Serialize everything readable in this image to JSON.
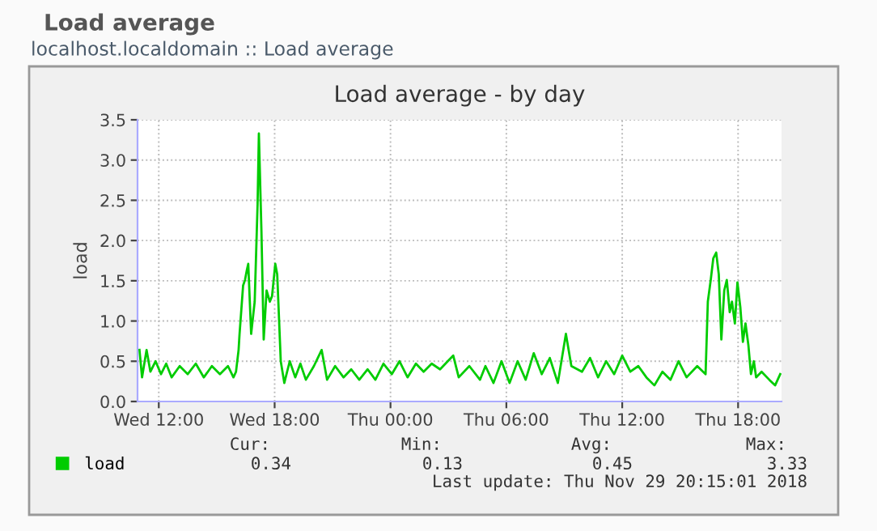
{
  "chart_data": {
    "type": "line",
    "title": "Load average - by day",
    "subtitle": "localhost.localdomain :: Load average",
    "ylabel": "load",
    "annotations": [
      "Load average",
      "Cur:",
      "Min:",
      "Avg:",
      "Max:",
      "0.34",
      "0.13",
      "0.45",
      "3.33",
      "Last update: Thu Nov 29 20:15:01 2018"
    ],
    "xlim": [
      "2018-11-28T10:54",
      "2018-11-29T20:15"
    ],
    "ylim": [
      0,
      3.5
    ],
    "xticks": [
      {
        "value": "2018-11-28T12:00",
        "label": "Wed 12:00"
      },
      {
        "value": "2018-11-28T18:00",
        "label": "Wed 18:00"
      },
      {
        "value": "2018-11-29T00:00",
        "label": "Thu 00:00"
      },
      {
        "value": "2018-11-29T06:00",
        "label": "Thu 06:00"
      },
      {
        "value": "2018-11-29T12:00",
        "label": "Thu 12:00"
      },
      {
        "value": "2018-11-29T18:00",
        "label": "Thu 18:00"
      }
    ],
    "yticks": [
      {
        "value": 0,
        "label": "0.0"
      },
      {
        "value": 0.5,
        "label": "0.5"
      },
      {
        "value": 1,
        "label": "1.0"
      },
      {
        "value": 1.5,
        "label": "1.5"
      },
      {
        "value": 2,
        "label": "2.0"
      },
      {
        "value": 2.5,
        "label": "2.5"
      },
      {
        "value": 3,
        "label": "3.0"
      },
      {
        "value": 3.5,
        "label": "3.5"
      }
    ],
    "grid": true,
    "legend": "bottom left",
    "series": [
      {
        "name": "load",
        "color": "#00cc00",
        "x": [
          "2018-11-28T11:00",
          "2018-11-28T11:08",
          "2018-11-28T11:22",
          "2018-11-28T11:34",
          "2018-11-28T11:50",
          "2018-11-28T12:07",
          "2018-11-28T12:23",
          "2018-11-28T12:40",
          "2018-11-28T13:05",
          "2018-11-28T13:30",
          "2018-11-28T13:55",
          "2018-11-28T14:20",
          "2018-11-28T14:45",
          "2018-11-28T15:10",
          "2018-11-28T15:35",
          "2018-11-28T15:52",
          "2018-11-28T16:00",
          "2018-11-28T16:08",
          "2018-11-28T16:11",
          "2018-11-28T16:22",
          "2018-11-28T16:28",
          "2018-11-28T16:34",
          "2018-11-28T16:38",
          "2018-11-28T16:47",
          "2018-11-28T16:58",
          "2018-11-28T17:07",
          "2018-11-28T17:11",
          "2018-11-28T17:19",
          "2018-11-28T17:26",
          "2018-11-28T17:35",
          "2018-11-28T17:45",
          "2018-11-28T17:52",
          "2018-11-28T18:02",
          "2018-11-28T18:08",
          "2018-11-28T18:19",
          "2018-11-28T18:30",
          "2018-11-28T18:47",
          "2018-11-28T19:04",
          "2018-11-28T19:20",
          "2018-11-28T19:37",
          "2018-11-28T20:02",
          "2018-11-28T20:26",
          "2018-11-28T20:43",
          "2018-11-28T21:08",
          "2018-11-28T21:34",
          "2018-11-28T21:58",
          "2018-11-28T22:23",
          "2018-11-28T22:49",
          "2018-11-28T23:13",
          "2018-11-28T23:38",
          "2018-11-29T00:04",
          "2018-11-29T00:28",
          "2018-11-29T00:53",
          "2018-11-29T01:19",
          "2018-11-29T01:43",
          "2018-11-29T02:08",
          "2018-11-29T02:34",
          "2018-11-29T02:58",
          "2018-11-29T03:15",
          "2018-11-29T03:32",
          "2018-11-29T04:05",
          "2018-11-29T04:38",
          "2018-11-29T04:55",
          "2018-11-29T05:20",
          "2018-11-29T05:45",
          "2018-11-29T06:10",
          "2018-11-29T06:35",
          "2018-11-29T07:00",
          "2018-11-29T07:25",
          "2018-11-29T07:50",
          "2018-11-29T08:15",
          "2018-11-29T08:40",
          "2018-11-29T09:05",
          "2018-11-29T09:22",
          "2018-11-29T09:55",
          "2018-11-29T10:20",
          "2018-11-29T10:45",
          "2018-11-29T11:10",
          "2018-11-29T11:35",
          "2018-11-29T12:00",
          "2018-11-29T12:25",
          "2018-11-29T12:50",
          "2018-11-29T13:15",
          "2018-11-29T13:40",
          "2018-11-29T14:05",
          "2018-11-29T14:30",
          "2018-11-29T14:55",
          "2018-11-29T15:20",
          "2018-11-29T15:53",
          "2018-11-29T16:19",
          "2018-11-29T16:26",
          "2018-11-29T16:35",
          "2018-11-29T16:43",
          "2018-11-29T16:52",
          "2018-11-29T17:00",
          "2018-11-29T17:08",
          "2018-11-29T17:17",
          "2018-11-29T17:25",
          "2018-11-29T17:34",
          "2018-11-29T17:41",
          "2018-11-29T17:50",
          "2018-11-29T17:58",
          "2018-11-29T18:07",
          "2018-11-29T18:15",
          "2018-11-29T18:23",
          "2018-11-29T18:32",
          "2018-11-29T18:40",
          "2018-11-29T18:49",
          "2018-11-29T18:56",
          "2018-11-29T19:13",
          "2018-11-29T19:37",
          "2018-11-29T19:55",
          "2018-11-29T20:11"
        ],
        "values": [
          0.64,
          0.3,
          0.64,
          0.37,
          0.5,
          0.34,
          0.47,
          0.3,
          0.44,
          0.34,
          0.47,
          0.3,
          0.44,
          0.34,
          0.44,
          0.3,
          0.37,
          0.64,
          0.84,
          1.44,
          1.51,
          1.64,
          1.71,
          0.84,
          1.24,
          2.45,
          3.33,
          2.11,
          0.77,
          1.38,
          1.24,
          1.31,
          1.71,
          1.58,
          0.5,
          0.23,
          0.5,
          0.3,
          0.47,
          0.27,
          0.44,
          0.64,
          0.27,
          0.44,
          0.3,
          0.4,
          0.27,
          0.4,
          0.27,
          0.47,
          0.34,
          0.5,
          0.3,
          0.47,
          0.37,
          0.47,
          0.4,
          0.5,
          0.57,
          0.3,
          0.44,
          0.27,
          0.44,
          0.23,
          0.5,
          0.23,
          0.5,
          0.27,
          0.6,
          0.34,
          0.54,
          0.23,
          0.84,
          0.44,
          0.37,
          0.54,
          0.3,
          0.5,
          0.34,
          0.57,
          0.37,
          0.44,
          0.3,
          0.2,
          0.37,
          0.27,
          0.5,
          0.3,
          0.44,
          0.34,
          1.24,
          1.51,
          1.78,
          1.85,
          1.58,
          0.77,
          1.38,
          1.51,
          1.11,
          1.24,
          0.97,
          1.48,
          1.17,
          0.74,
          0.97,
          0.7,
          0.34,
          0.5,
          0.3,
          0.37,
          0.27,
          0.2,
          0.34
        ]
      }
    ]
  }
}
